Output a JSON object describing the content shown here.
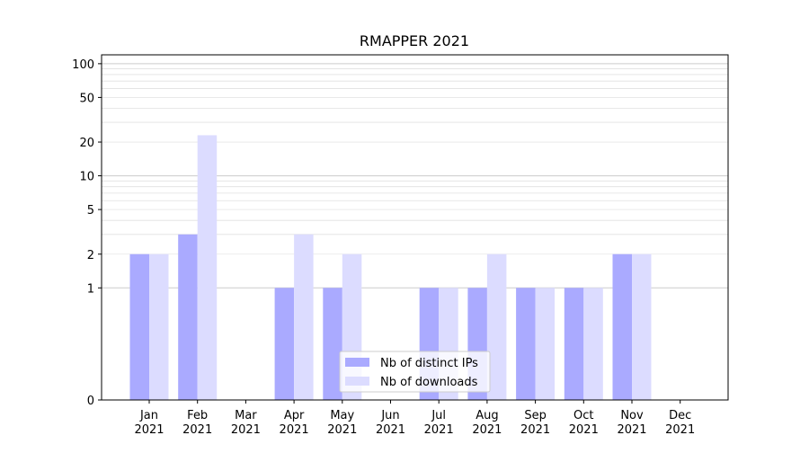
{
  "chart_data": {
    "type": "bar",
    "title": "RMAPPER 2021",
    "xlabel": "",
    "ylabel": "",
    "yscale": "symlog",
    "ylim": [
      0,
      120
    ],
    "yticks": [
      0,
      1,
      2,
      5,
      10,
      20,
      50,
      100
    ],
    "grid": true,
    "legend_position": "lower-center",
    "categories": [
      "Jan\n2021",
      "Feb\n2021",
      "Mar\n2021",
      "Apr\n2021",
      "May\n2021",
      "Jun\n2021",
      "Jul\n2021",
      "Aug\n2021",
      "Sep\n2021",
      "Oct\n2021",
      "Nov\n2021",
      "Dec\n2021"
    ],
    "series": [
      {
        "name": "Nb of distinct IPs",
        "color": "#aaaaff",
        "values": [
          2,
          3,
          0,
          1,
          1,
          0,
          1,
          1,
          1,
          1,
          2,
          0
        ]
      },
      {
        "name": "Nb of downloads",
        "color": "#dcdcff",
        "values": [
          2,
          23,
          0,
          3,
          2,
          0,
          1,
          2,
          1,
          1,
          2,
          0
        ]
      }
    ]
  }
}
